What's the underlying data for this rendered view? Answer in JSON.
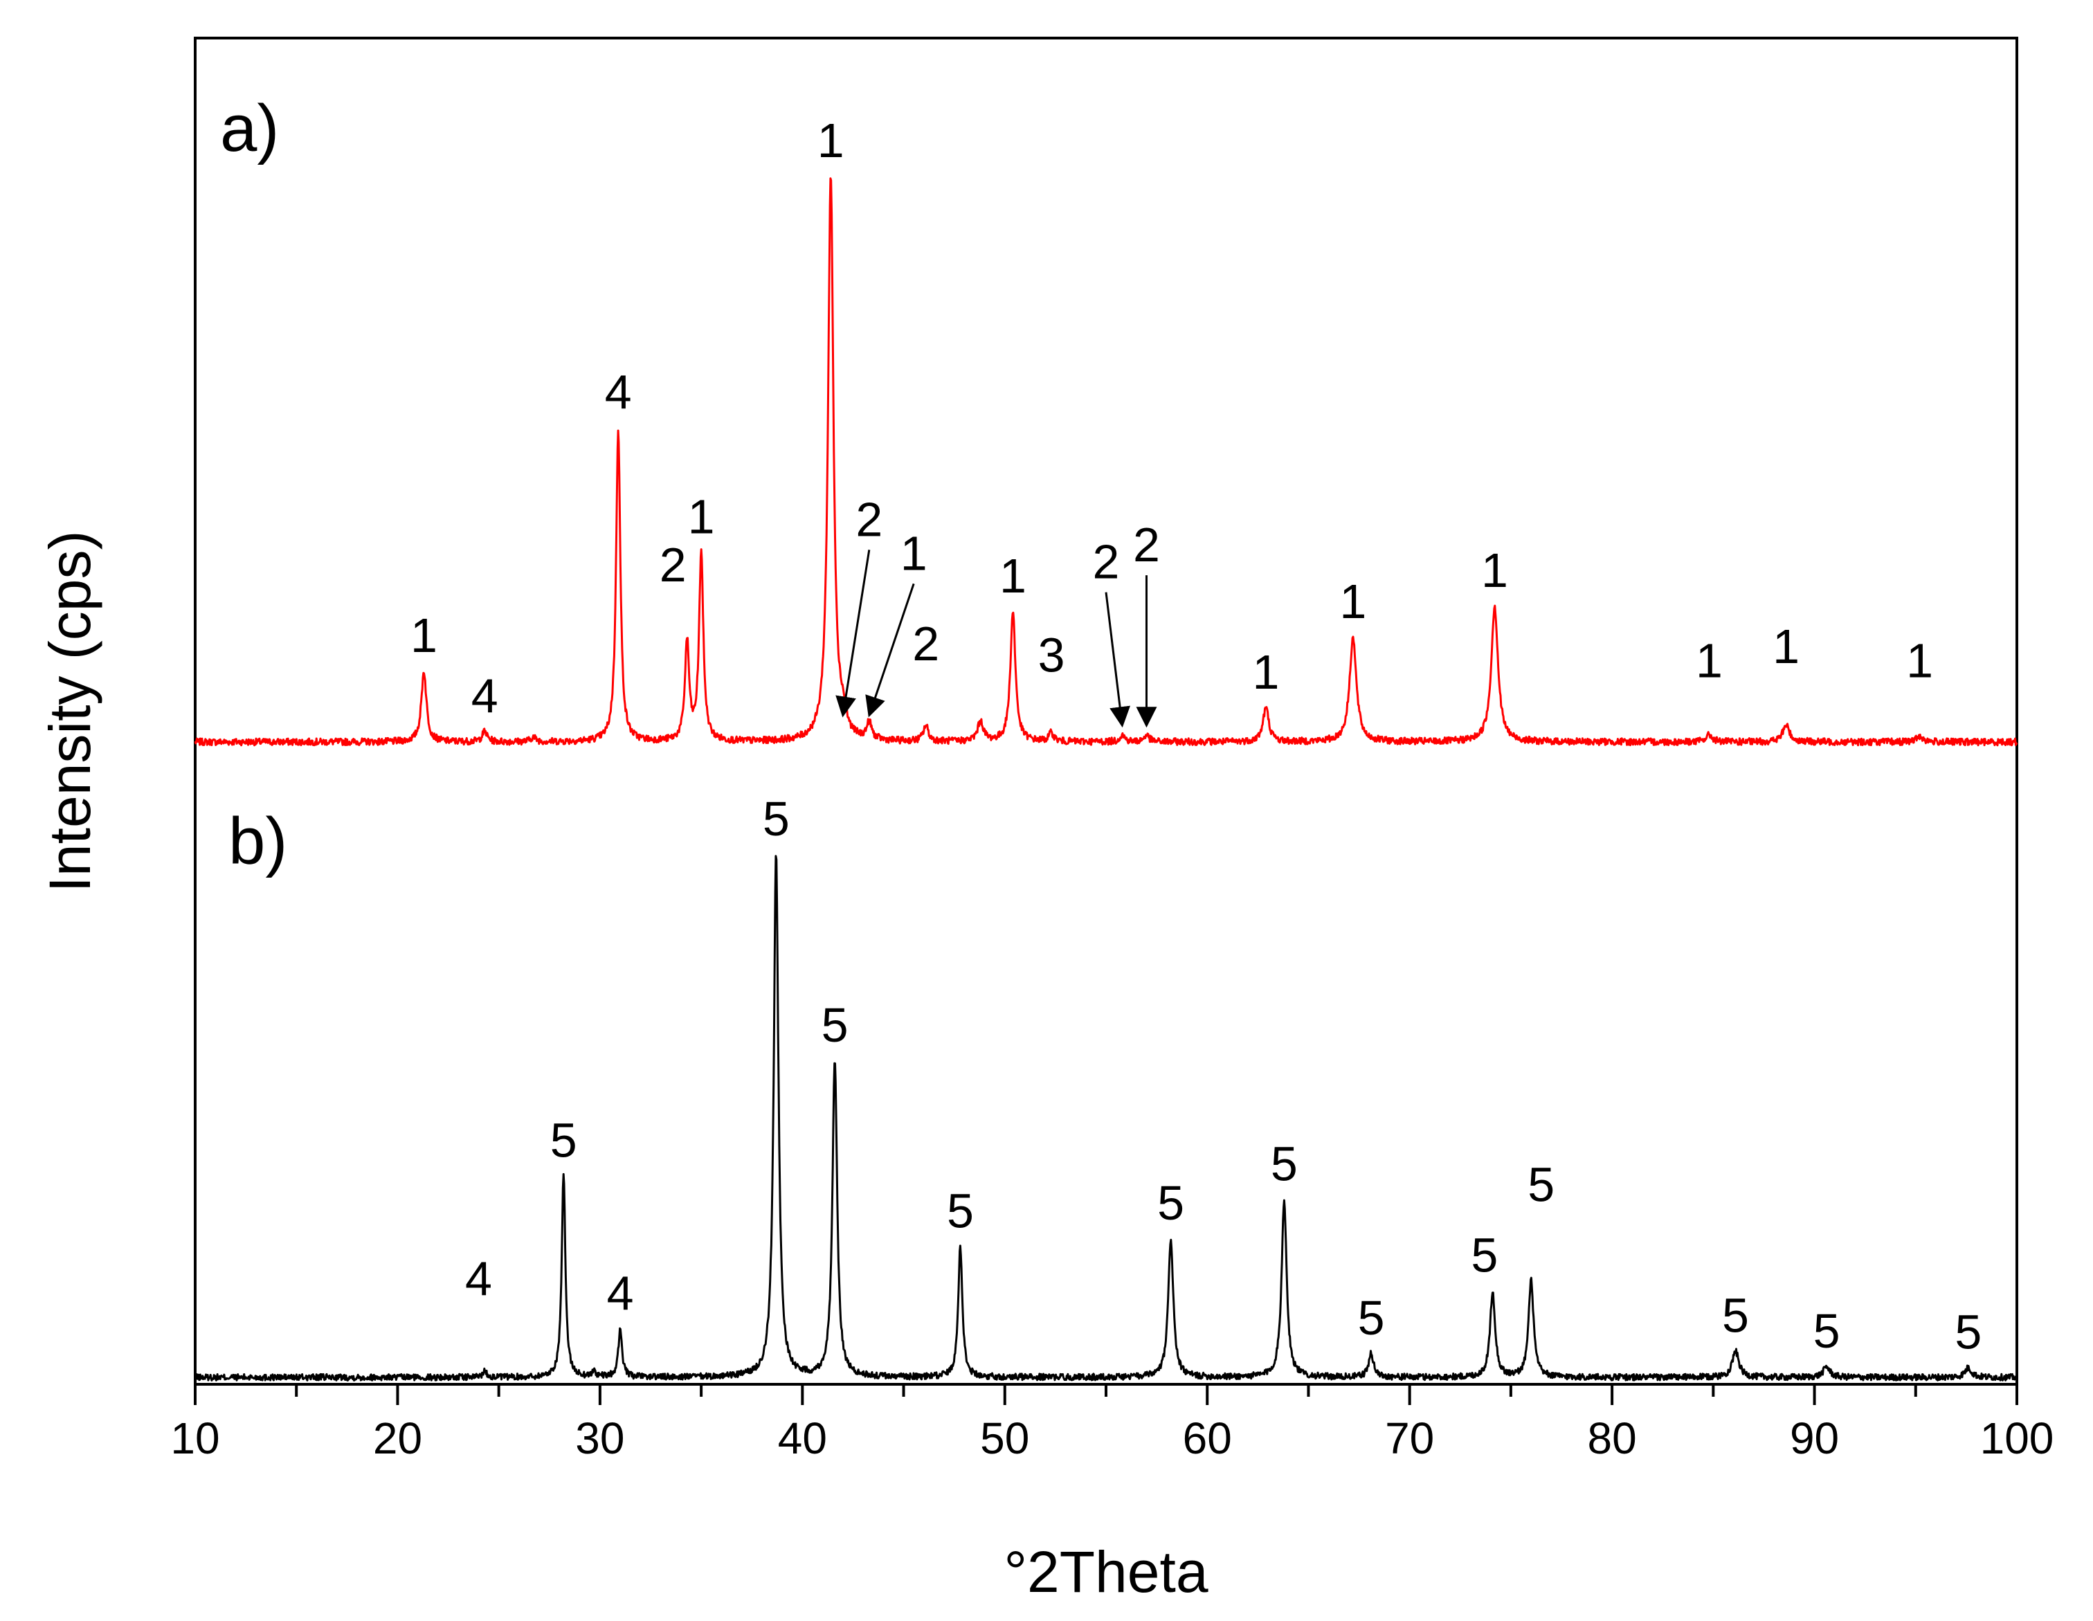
{
  "chart_data": {
    "type": "line",
    "xlabel": "°2Theta",
    "ylabel": "Intensity (cps)",
    "xlim": [
      10,
      100
    ],
    "xticks": [
      10,
      20,
      30,
      40,
      50,
      60,
      70,
      80,
      90,
      100
    ],
    "xtick_labels": [
      "10",
      "20",
      "30",
      "40",
      "50",
      "60",
      "70",
      "80",
      "90",
      "100"
    ],
    "grid": false,
    "legend": "none",
    "series": [
      {
        "name": "a)",
        "panel_label": "a)",
        "color": "#ff0000",
        "ylim": [
          0,
          1.2
        ],
        "peaks": [
          {
            "x": 21.3,
            "intensity": 0.125,
            "width": 0.3
          },
          {
            "x": 24.3,
            "intensity": 0.018,
            "width": 0.3
          },
          {
            "x": 26.7,
            "intensity": 0.008,
            "width": 0.3
          },
          {
            "x": 30.9,
            "intensity": 0.555,
            "width": 0.25
          },
          {
            "x": 34.3,
            "intensity": 0.175,
            "width": 0.25
          },
          {
            "x": 35.0,
            "intensity": 0.335,
            "width": 0.25
          },
          {
            "x": 41.4,
            "intensity": 1.0,
            "width": 0.32
          },
          {
            "x": 42.0,
            "intensity": 0.03,
            "width": 0.35
          },
          {
            "x": 43.3,
            "intensity": 0.03,
            "width": 0.3
          },
          {
            "x": 46.1,
            "intensity": 0.028,
            "width": 0.3
          },
          {
            "x": 48.8,
            "intensity": 0.035,
            "width": 0.35
          },
          {
            "x": 50.4,
            "intensity": 0.23,
            "width": 0.3
          },
          {
            "x": 52.3,
            "intensity": 0.015,
            "width": 0.3
          },
          {
            "x": 55.8,
            "intensity": 0.012,
            "width": 0.3
          },
          {
            "x": 57.0,
            "intensity": 0.012,
            "width": 0.3
          },
          {
            "x": 62.9,
            "intensity": 0.06,
            "width": 0.35
          },
          {
            "x": 67.2,
            "intensity": 0.185,
            "width": 0.4
          },
          {
            "x": 74.2,
            "intensity": 0.24,
            "width": 0.4
          },
          {
            "x": 84.8,
            "intensity": 0.012,
            "width": 0.4
          },
          {
            "x": 88.6,
            "intensity": 0.03,
            "width": 0.4
          },
          {
            "x": 95.2,
            "intensity": 0.01,
            "width": 0.4
          }
        ]
      },
      {
        "name": "b)",
        "panel_label": "b)",
        "color": "#000000",
        "ylim": [
          0,
          1.15
        ],
        "peaks": [
          {
            "x": 24.3,
            "intensity": 0.012,
            "width": 0.25
          },
          {
            "x": 28.2,
            "intensity": 0.385,
            "width": 0.22
          },
          {
            "x": 29.7,
            "intensity": 0.01,
            "width": 0.25
          },
          {
            "x": 31.0,
            "intensity": 0.092,
            "width": 0.22
          },
          {
            "x": 38.7,
            "intensity": 1.0,
            "width": 0.28
          },
          {
            "x": 41.6,
            "intensity": 0.605,
            "width": 0.28
          },
          {
            "x": 47.8,
            "intensity": 0.25,
            "width": 0.25
          },
          {
            "x": 58.2,
            "intensity": 0.265,
            "width": 0.3
          },
          {
            "x": 63.8,
            "intensity": 0.34,
            "width": 0.3
          },
          {
            "x": 68.1,
            "intensity": 0.045,
            "width": 0.3
          },
          {
            "x": 74.1,
            "intensity": 0.165,
            "width": 0.3
          },
          {
            "x": 76.0,
            "intensity": 0.185,
            "width": 0.3
          },
          {
            "x": 86.1,
            "intensity": 0.05,
            "width": 0.4
          },
          {
            "x": 90.6,
            "intensity": 0.02,
            "width": 0.4
          },
          {
            "x": 97.6,
            "intensity": 0.018,
            "width": 0.4
          }
        ]
      }
    ],
    "annotations": [
      {
        "panel": "a)",
        "text": "1",
        "x": 21.3,
        "y": 0.125
      },
      {
        "panel": "a)",
        "text": "4",
        "x": 24.3,
        "y": 0.018
      },
      {
        "panel": "a)",
        "text": "4",
        "x": 30.9,
        "y": 0.555
      },
      {
        "panel": "a)",
        "text": "2",
        "x": 33.6,
        "y": 0.25
      },
      {
        "panel": "a)",
        "text": "1",
        "x": 35.0,
        "y": 0.335
      },
      {
        "panel": "a)",
        "text": "1",
        "x": 41.4,
        "y": 1.0
      },
      {
        "panel": "a)",
        "text": "2",
        "x": 42.0,
        "y": 0.03,
        "arrow": true,
        "label_x": 43.3,
        "label_y": 0.33
      },
      {
        "panel": "a)",
        "text": "1",
        "x": 43.3,
        "y": 0.03,
        "arrow": true,
        "label_x": 45.5,
        "label_y": 0.27
      },
      {
        "panel": "a)",
        "text": "2",
        "x": 46.1,
        "y": 0.028,
        "label_x": 46.1,
        "label_y": 0.11
      },
      {
        "panel": "a)",
        "text": "1",
        "x": 50.4,
        "y": 0.23
      },
      {
        "panel": "a)",
        "text": "3",
        "x": 52.3,
        "y": 0.015,
        "label_x": 52.3,
        "label_y": 0.09
      },
      {
        "panel": "a)",
        "text": "2",
        "x": 55.8,
        "y": 0.012,
        "arrow": true,
        "label_x": 55.0,
        "label_y": 0.255
      },
      {
        "panel": "a)",
        "text": "2",
        "x": 57.0,
        "y": 0.012,
        "arrow": true,
        "label_x": 57.0,
        "label_y": 0.285
      },
      {
        "panel": "a)",
        "text": "1",
        "x": 62.9,
        "y": 0.06
      },
      {
        "panel": "a)",
        "text": "1",
        "x": 67.2,
        "y": 0.185
      },
      {
        "panel": "a)",
        "text": "1",
        "x": 74.2,
        "y": 0.24
      },
      {
        "panel": "a)",
        "text": "1",
        "x": 84.8,
        "y": 0.012,
        "label_x": 84.8,
        "label_y": 0.08
      },
      {
        "panel": "a)",
        "text": "1",
        "x": 88.6,
        "y": 0.03,
        "label_x": 88.6,
        "label_y": 0.105
      },
      {
        "panel": "a)",
        "text": "1",
        "x": 95.2,
        "y": 0.01,
        "label_x": 95.2,
        "label_y": 0.08
      },
      {
        "panel": "b)",
        "text": "4",
        "x": 24.3,
        "y": 0.012,
        "label_x": 24.0,
        "label_y": 0.12
      },
      {
        "panel": "b)",
        "text": "5",
        "x": 28.2,
        "y": 0.385
      },
      {
        "panel": "b)",
        "text": "4",
        "x": 31.0,
        "y": 0.092
      },
      {
        "panel": "b)",
        "text": "5",
        "x": 38.7,
        "y": 1.0
      },
      {
        "panel": "b)",
        "text": "5",
        "x": 41.6,
        "y": 0.605
      },
      {
        "panel": "b)",
        "text": "5",
        "x": 47.8,
        "y": 0.25
      },
      {
        "panel": "b)",
        "text": "5",
        "x": 58.2,
        "y": 0.265
      },
      {
        "panel": "b)",
        "text": "5",
        "x": 63.8,
        "y": 0.34
      },
      {
        "panel": "b)",
        "text": "5",
        "x": 68.1,
        "y": 0.045
      },
      {
        "panel": "b)",
        "text": "5",
        "x": 73.7,
        "y": 0.165
      },
      {
        "panel": "b)",
        "text": "5",
        "x": 76.5,
        "y": 0.3
      },
      {
        "panel": "b)",
        "text": "5",
        "x": 86.1,
        "y": 0.05
      },
      {
        "panel": "b)",
        "text": "5",
        "x": 90.6,
        "y": 0.02
      },
      {
        "panel": "b)",
        "text": "5",
        "x": 97.6,
        "y": 0.018
      }
    ]
  }
}
